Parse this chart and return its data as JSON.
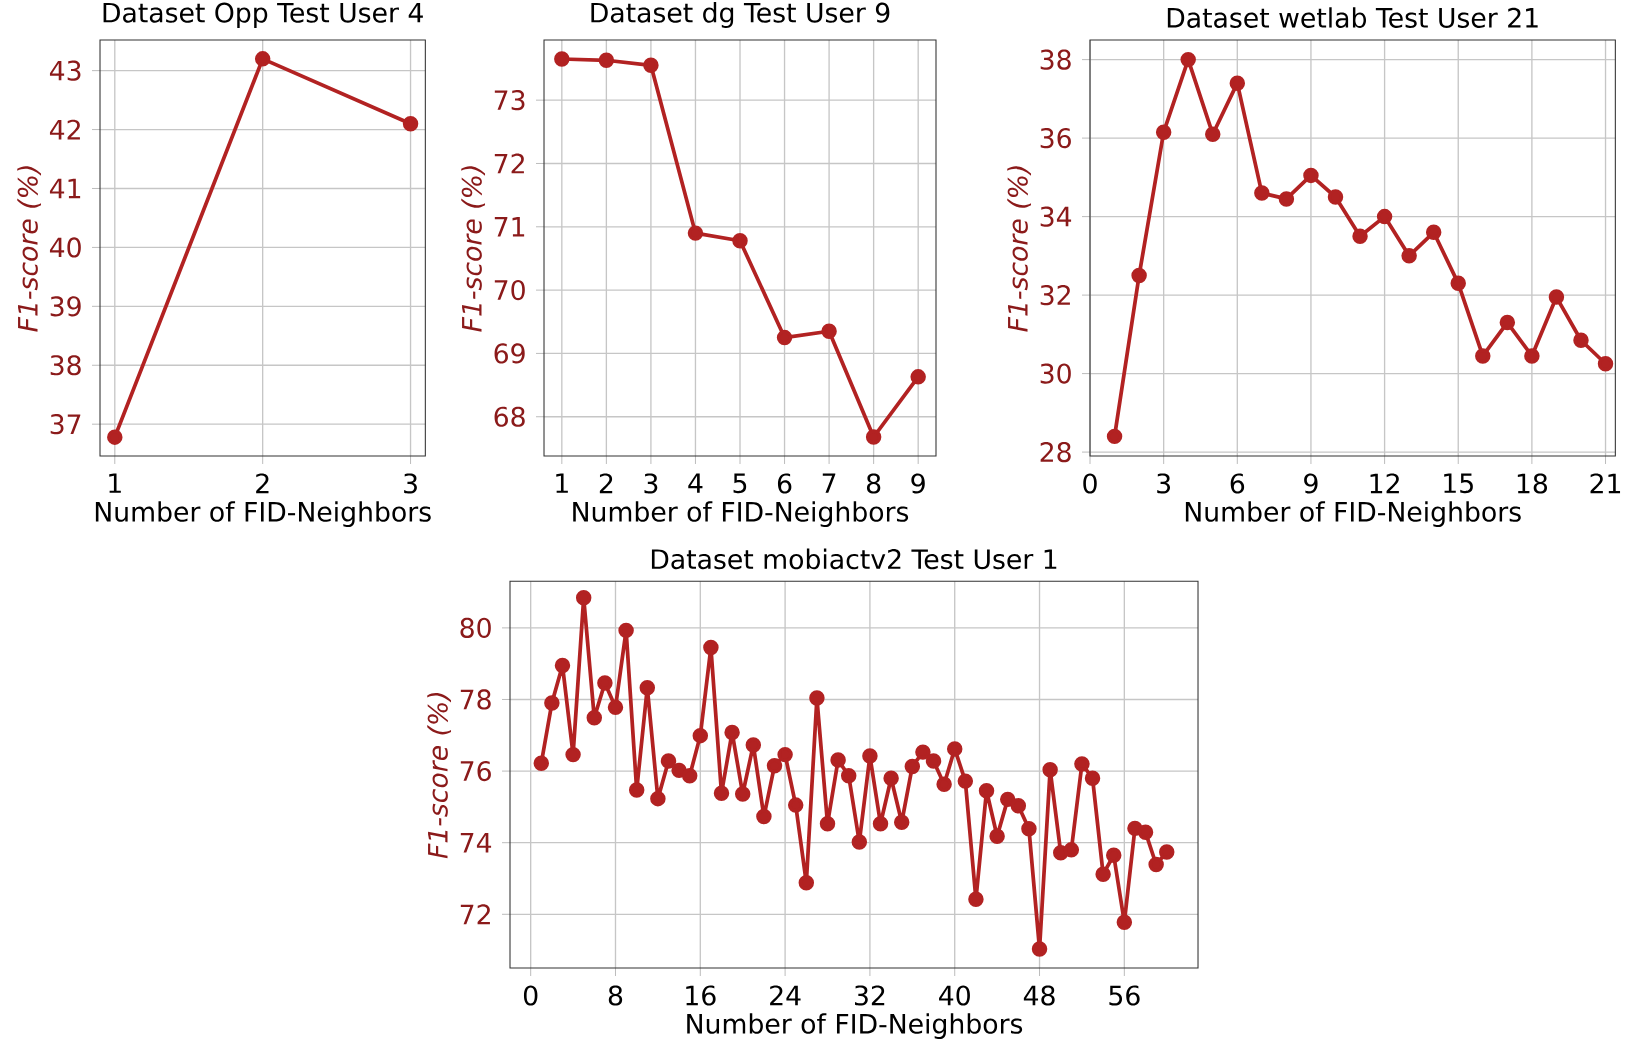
{
  "chart_data": [
    {
      "type": "line",
      "title": "Dataset Opp Test User 4",
      "xlabel": "Number of FID-Neighbors",
      "ylabel": "F1-score (%)",
      "color": "#b22222",
      "marker": "circle",
      "grid": true,
      "x": [
        1,
        2,
        3
      ],
      "values": [
        36.78,
        43.2,
        42.1
      ],
      "xlim": [
        0.9,
        3.1
      ],
      "ylim": [
        36.46,
        43.52
      ],
      "xticks": [
        1,
        2,
        3
      ],
      "yticks": [
        37,
        38,
        39,
        40,
        41,
        42,
        43
      ]
    },
    {
      "type": "line",
      "title": "Dataset dg Test User 9",
      "xlabel": "Number of FID-Neighbors",
      "ylabel": "F1-score (%)",
      "color": "#b22222",
      "marker": "circle",
      "grid": true,
      "x": [
        1,
        2,
        3,
        4,
        5,
        6,
        7,
        8,
        9
      ],
      "values": [
        73.65,
        73.63,
        73.55,
        70.9,
        70.78,
        69.25,
        69.35,
        67.68,
        68.63
      ],
      "xlim": [
        0.6,
        9.4
      ],
      "ylim": [
        67.38,
        73.95
      ],
      "xticks": [
        1,
        2,
        3,
        4,
        5,
        6,
        7,
        8,
        9
      ],
      "yticks": [
        68,
        69,
        70,
        71,
        72,
        73
      ]
    },
    {
      "type": "line",
      "title": "Dataset wetlab Test User 21",
      "xlabel": "Number of FID-Neighbors",
      "ylabel": "F1-score (%)",
      "color": "#b22222",
      "marker": "circle",
      "grid": true,
      "x": [
        1,
        2,
        3,
        4,
        5,
        6,
        7,
        8,
        9,
        10,
        11,
        12,
        13,
        14,
        15,
        16,
        17,
        18,
        19,
        20,
        21
      ],
      "values": [
        28.4,
        32.5,
        36.15,
        38.0,
        36.1,
        37.4,
        34.6,
        34.45,
        35.05,
        34.5,
        33.5,
        34.0,
        33.0,
        33.6,
        32.3,
        30.45,
        31.3,
        30.45,
        31.95,
        30.85,
        30.25
      ],
      "xlim": [
        0,
        21.4
      ],
      "ylim": [
        27.9,
        38.5
      ],
      "xticks": [
        0,
        3,
        6,
        9,
        12,
        15,
        18,
        21
      ],
      "yticks": [
        28,
        30,
        32,
        34,
        36,
        38
      ]
    },
    {
      "type": "line",
      "title": "Dataset mobiactv2 Test User 1",
      "xlabel": "Number of FID-Neighbors",
      "ylabel": "F1-score (%)",
      "color": "#b22222",
      "marker": "circle",
      "grid": true,
      "x": [
        1,
        2,
        3,
        4,
        5,
        6,
        7,
        8,
        9,
        10,
        11,
        12,
        13,
        14,
        15,
        16,
        17,
        18,
        19,
        20,
        21,
        22,
        23,
        24,
        25,
        26,
        27,
        28,
        29,
        30,
        31,
        32,
        33,
        34,
        35,
        36,
        37,
        38,
        39,
        40,
        41,
        42,
        43,
        44,
        45,
        46,
        47,
        48,
        49,
        50,
        51,
        52,
        53,
        54,
        55,
        56,
        57,
        58,
        59,
        60
      ],
      "values": [
        76.22,
        77.9,
        78.95,
        76.46,
        80.84,
        77.49,
        78.46,
        77.78,
        79.93,
        75.47,
        78.33,
        75.23,
        76.28,
        76.02,
        75.87,
        76.99,
        79.45,
        75.38,
        77.08,
        75.36,
        76.73,
        74.73,
        76.15,
        76.46,
        75.05,
        72.88,
        78.04,
        74.53,
        76.31,
        75.87,
        74.02,
        76.42,
        74.53,
        75.8,
        74.57,
        76.13,
        76.53,
        76.28,
        75.63,
        76.62,
        75.72,
        72.42,
        75.45,
        74.18,
        75.21,
        75.03,
        74.39,
        71.03,
        76.04,
        73.72,
        73.8,
        76.2,
        75.8,
        73.12,
        73.65,
        71.78,
        74.4,
        74.29,
        73.39,
        73.74
      ],
      "xlim": [
        -1.95,
        62.95
      ],
      "ylim": [
        70.5,
        81.3
      ],
      "xticks": [
        0,
        8,
        16,
        24,
        32,
        40,
        48,
        56
      ],
      "yticks": [
        72,
        74,
        76,
        78,
        80
      ]
    }
  ]
}
